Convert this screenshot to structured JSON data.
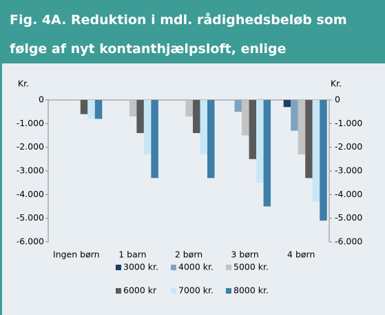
{
  "chart_data": {
    "type": "bar",
    "title": [
      "Fig. 4A. Reduktion i mdl. rådighedsbeløb som",
      "følge af nyt kontanthjælpsloft, enlige"
    ],
    "ylabel": "Kr.",
    "y2label": "Kr.",
    "categories": [
      "Ingen børn",
      "1 barn",
      "2 børn",
      "3 børn",
      "4 børn"
    ],
    "series": [
      {
        "name": "3000 kr.",
        "color": "#1f3f63",
        "values": [
          0,
          0,
          0,
          0,
          -300
        ]
      },
      {
        "name": "4000 kr.",
        "color": "#7ea3bf",
        "values": [
          0,
          0,
          0,
          -500,
          -1300
        ]
      },
      {
        "name": "5000 kr.",
        "color": "#c3c3c3",
        "values": [
          0,
          -700,
          -700,
          -1500,
          -2300
        ]
      },
      {
        "name": "6000 kr",
        "color": "#5a5a5a",
        "values": [
          -600,
          -1400,
          -1400,
          -2500,
          -3300
        ]
      },
      {
        "name": "7000 kr.",
        "color": "#c8e7f6",
        "values": [
          -800,
          -2300,
          -2300,
          -3500,
          -4300
        ]
      },
      {
        "name": "8000 kr.",
        "color": "#3e7ea8",
        "values": [
          -800,
          -3300,
          -3300,
          -4500,
          -5100
        ]
      }
    ],
    "ylim": [
      -6000,
      0
    ],
    "yticks": [
      0,
      {
        "value": -1000,
        "label": "-1.000"
      },
      {
        "value": -2000,
        "label": "-2.000"
      },
      {
        "value": -3000,
        "label": "-3.000"
      },
      {
        "value": -4000,
        "label": "-4.000"
      },
      {
        "value": -5000,
        "label": "-5.000"
      },
      {
        "value": -6000,
        "label": "-6.000"
      }
    ],
    "y2lim": [
      -6000,
      0
    ],
    "y2ticks": [
      0,
      {
        "value": -1000,
        "label": "-1.000"
      },
      {
        "value": -2000,
        "label": "-2.000"
      },
      {
        "value": -3000,
        "label": "-3.000"
      },
      {
        "value": -4000,
        "label": "-4.000"
      },
      {
        "value": -5000,
        "label": "-5.000"
      },
      {
        "value": -6000,
        "label": "-6.000"
      }
    ]
  }
}
